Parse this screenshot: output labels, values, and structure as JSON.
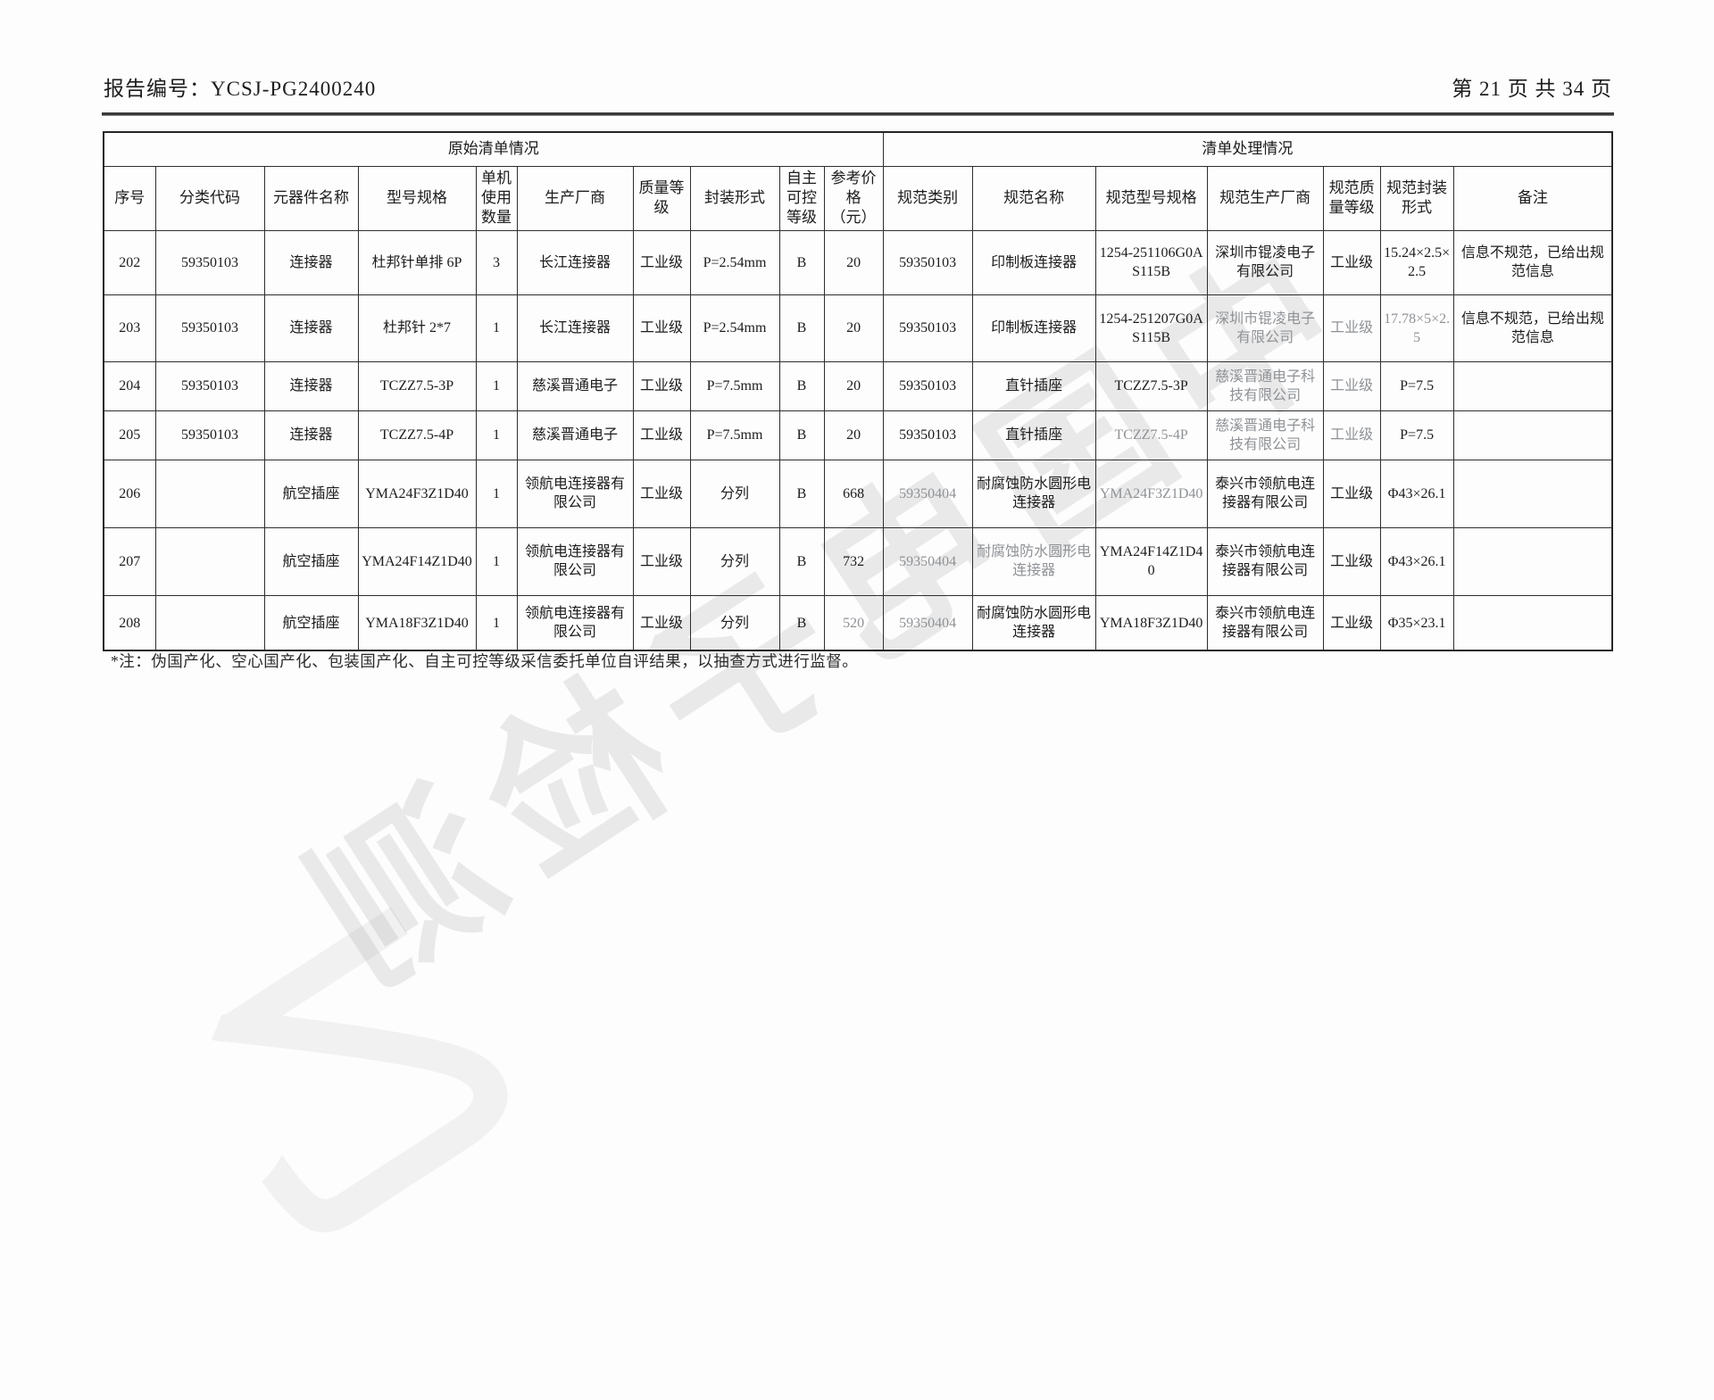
{
  "page": {
    "report_label": "报告编号：",
    "report_no": "YCSJ-PG2400240",
    "page_info": "第 21 页 共 34 页"
  },
  "table": {
    "section_headers": [
      "原始清单情况",
      "清单处理情况"
    ],
    "columns": [
      "序号",
      "分类代码",
      "元器件名称",
      "型号规格",
      "单机使用数量",
      "生产厂商",
      "质量等级",
      "封装形式",
      "自主可控等级",
      "参考价格（元）",
      "规范类别",
      "规范名称",
      "规范型号规格",
      "规范生产厂商",
      "规范质量等级",
      "规范封装形式",
      "备注"
    ],
    "rows": [
      [
        "202",
        "59350103",
        "连接器",
        "杜邦针单排 6P",
        "3",
        "长江连接器",
        "工业级",
        "P=2.54mm",
        "B",
        "20",
        "59350103",
        "印制板连接器",
        "1254-251106G0AS115B",
        "深圳市锟凌电子有限公司",
        "工业级",
        "15.24×2.5×2.5",
        "信息不规范，已给出规范信息"
      ],
      [
        "203",
        "59350103",
        "连接器",
        "杜邦针 2*7",
        "1",
        "长江连接器",
        "工业级",
        "P=2.54mm",
        "B",
        "20",
        "59350103",
        "印制板连接器",
        "1254-251207G0AS115B",
        "深圳市锟凌电子有限公司",
        "工业级",
        "17.78×5×2.5",
        "信息不规范，已给出规范信息"
      ],
      [
        "204",
        "59350103",
        "连接器",
        "TCZZ7.5-3P",
        "1",
        "慈溪晋通电子",
        "工业级",
        "P=7.5mm",
        "B",
        "20",
        "59350103",
        "直针插座",
        "TCZZ7.5-3P",
        "慈溪晋通电子科技有限公司",
        "工业级",
        "P=7.5",
        ""
      ],
      [
        "205",
        "59350103",
        "连接器",
        "TCZZ7.5-4P",
        "1",
        "慈溪晋通电子",
        "工业级",
        "P=7.5mm",
        "B",
        "20",
        "59350103",
        "直针插座",
        "TCZZ7.5-4P",
        "慈溪晋通电子科技有限公司",
        "工业级",
        "P=7.5",
        ""
      ],
      [
        "206",
        "",
        "航空插座",
        "YMA24F3Z1D40",
        "1",
        "领航电连接器有限公司",
        "工业级",
        "分列",
        "B",
        "668",
        "59350404",
        "耐腐蚀防水圆形电连接器",
        "YMA24F3Z1D40",
        "泰兴市领航电连接器有限公司",
        "工业级",
        "Φ43×26.1",
        ""
      ],
      [
        "207",
        "",
        "航空插座",
        "YMA24F14Z1D40",
        "1",
        "领航电连接器有限公司",
        "工业级",
        "分列",
        "B",
        "732",
        "59350404",
        "耐腐蚀防水圆形电连接器",
        "YMA24F14Z1D40",
        "泰兴市领航电连接器有限公司",
        "工业级",
        "Φ43×26.1",
        ""
      ],
      [
        "208",
        "",
        "航空插座",
        "YMA18F3Z1D40",
        "1",
        "领航电连接器有限公司",
        "工业级",
        "分列",
        "B",
        "520",
        "59350404",
        "耐腐蚀防水圆形电连接器",
        "YMA18F3Z1D40",
        "泰兴市领航电连接器有限公司",
        "工业级",
        "Φ35×23.1",
        ""
      ]
    ]
  },
  "footnote": "*注：伪国产化、空心国产化、包装国产化、自主可控等级采信委托单位自评结果，以抽查方式进行监督。",
  "watermark": {
    "text": "中国电子检测",
    "corner": "乙"
  }
}
